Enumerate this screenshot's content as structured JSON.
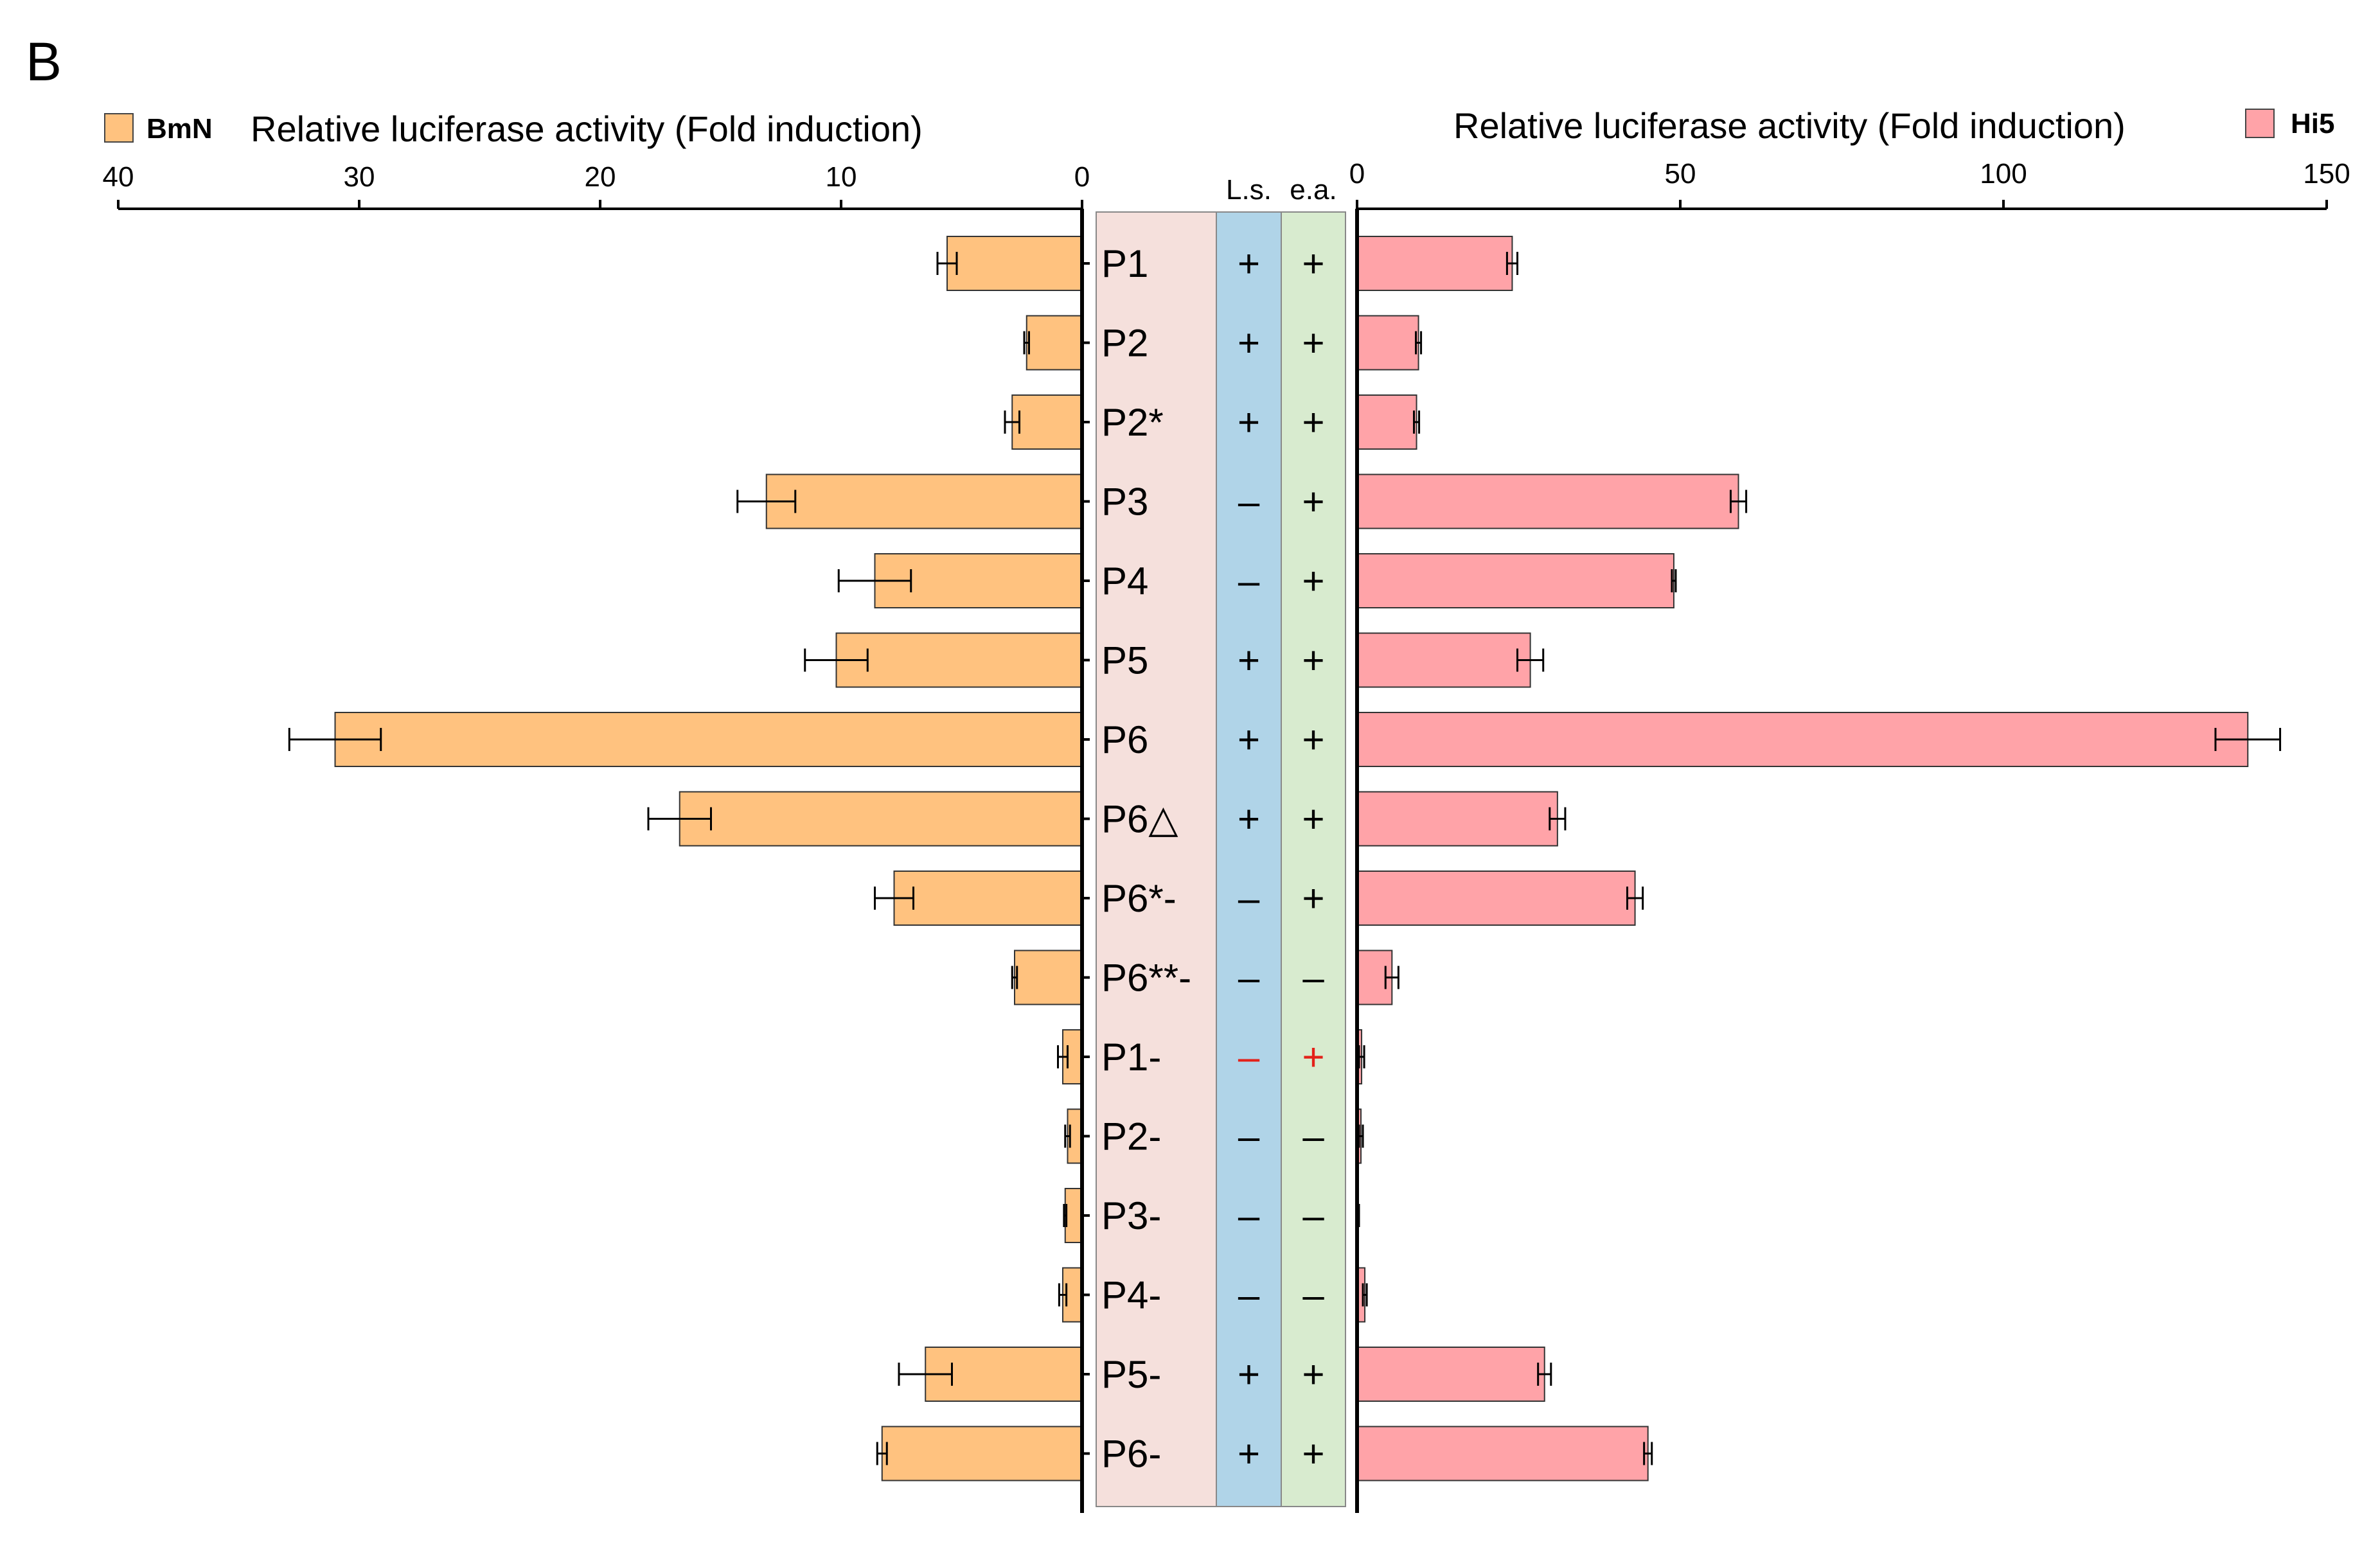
{
  "panel_label": "B",
  "colors": {
    "bmn": "#FFC27F",
    "hi5": "#FFA3A8",
    "ls_col": "#B0D4E8",
    "ea_col": "#D8EBCF",
    "label_col": "#F5E0DC",
    "sign_default": "#000000",
    "sign_highlight": "#E32119"
  },
  "chart_data": {
    "type": "bar",
    "orientation": "horizontal",
    "categories": [
      "P1",
      "P2",
      "P2*",
      "P3",
      "P4",
      "P5",
      "P6",
      "P6△",
      "P6*-",
      "P6**-",
      "P1-",
      "P2-",
      "P3-",
      "P4-",
      "P5-",
      "P6-"
    ],
    "columns": [
      {
        "header": "L.s.",
        "values": [
          "+",
          "+",
          "+",
          "–",
          "–",
          "+",
          "+",
          "+",
          "–",
          "–",
          "–",
          "–",
          "–",
          "–",
          "+",
          "+"
        ]
      },
      {
        "header": "e.a.",
        "values": [
          "+",
          "+",
          "+",
          "+",
          "+",
          "+",
          "+",
          "+",
          "+",
          "–",
          "+",
          "–",
          "–",
          "–",
          "+",
          "+"
        ]
      }
    ],
    "highlighted_rows": [
      10
    ],
    "left": {
      "legend": "BmN",
      "xlabel": "Relative luciferase activity (Fold induction)",
      "xlim": [
        0,
        40
      ],
      "ticks": [
        40,
        30,
        20,
        10,
        0
      ],
      "values": [
        5.6,
        2.3,
        2.9,
        13.1,
        8.6,
        10.2,
        31.0,
        16.7,
        7.8,
        2.8,
        0.8,
        0.6,
        0.7,
        0.8,
        6.5,
        8.3
      ],
      "errors": [
        0.4,
        0.1,
        0.3,
        1.2,
        1.5,
        1.3,
        1.9,
        1.3,
        0.8,
        0.1,
        0.2,
        0.1,
        0.05,
        0.15,
        1.1,
        0.2
      ]
    },
    "right": {
      "legend": "Hi5",
      "xlabel": "Relative luciferase activity (Fold induction)",
      "xlim": [
        0,
        150
      ],
      "ticks": [
        0,
        50,
        100,
        150
      ],
      "values": [
        24,
        9.5,
        9.2,
        59,
        49,
        26.8,
        137.8,
        31,
        43,
        5.4,
        0.7,
        0.6,
        0.2,
        1.2,
        29,
        45
      ],
      "errors": [
        0.8,
        0.4,
        0.4,
        1.2,
        0.3,
        2.0,
        5.0,
        1.2,
        1.2,
        1.0,
        0.4,
        0.3,
        0.1,
        0.3,
        1.0,
        0.6
      ]
    }
  }
}
